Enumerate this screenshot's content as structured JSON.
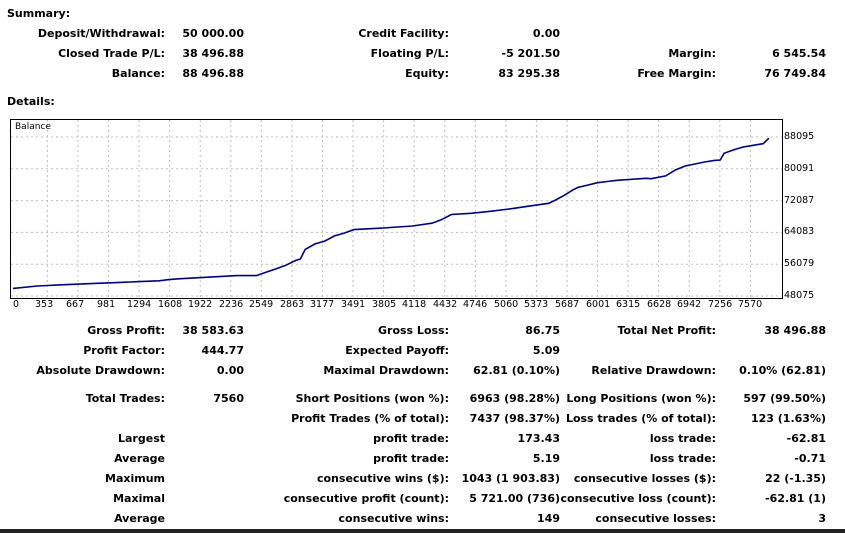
{
  "summary": {
    "title": "Summary:",
    "rows": [
      [
        {
          "label": "Deposit/Withdrawal:",
          "value": "50 000.00"
        },
        {
          "label": "Credit Facility:",
          "value": "0.00"
        },
        {
          "label": "",
          "value": ""
        }
      ],
      [
        {
          "label": "Closed Trade P/L:",
          "value": "38 496.88"
        },
        {
          "label": "Floating P/L:",
          "value": "-5 201.50"
        },
        {
          "label": "Margin:",
          "value": "6 545.54"
        }
      ],
      [
        {
          "label": "Balance:",
          "value": "88 496.88"
        },
        {
          "label": "Equity:",
          "value": "83 295.38"
        },
        {
          "label": "Free Margin:",
          "value": "76 749.84"
        }
      ]
    ]
  },
  "details": {
    "title": "Details:",
    "rows": [
      {
        "c1l": "Gross Profit:",
        "c1v": "38 583.63",
        "c2l": "Gross Loss:",
        "c2v": "86.75",
        "c3l": "Total Net Profit:",
        "c3v": "38 496.88"
      },
      {
        "c1l": "Profit Factor:",
        "c1v": "444.77",
        "c2l": "Expected Payoff:",
        "c2v": "5.09",
        "c3l": "",
        "c3v": ""
      },
      {
        "c1l": "Absolute Drawdown:",
        "c1v": "0.00",
        "c2l": "Maximal Drawdown:",
        "c2v": "62.81 (0.10%)",
        "c3l": "Relative Drawdown:",
        "c3v": "0.10% (62.81)"
      },
      {
        "c1l": "Total Trades:",
        "c1v": "7560",
        "c2l": "Short Positions (won %):",
        "c2v": "6963 (98.28%)",
        "c3l": "Long Positions (won %):",
        "c3v": "597 (99.50%)"
      },
      {
        "c1l": "",
        "c1v": "",
        "c2l": "Profit Trades (% of total):",
        "c2v": "7437 (98.37%)",
        "c3l": "Loss trades (% of total):",
        "c3v": "123 (1.63%)"
      },
      {
        "c1l": "Largest",
        "c1v": "",
        "c2l": "profit trade:",
        "c2v": "173.43",
        "c3l": "loss trade:",
        "c3v": "-62.81"
      },
      {
        "c1l": "Average",
        "c1v": "",
        "c2l": "profit trade:",
        "c2v": "5.19",
        "c3l": "loss trade:",
        "c3v": "-0.71"
      },
      {
        "c1l": "Maximum",
        "c1v": "",
        "c2l": "consecutive wins ($):",
        "c2v": "1043 (1 903.83)",
        "c3l": "consecutive losses ($):",
        "c3v": "22 (-1.35)"
      },
      {
        "c1l": "Maximal",
        "c1v": "",
        "c2l": "consecutive profit (count):",
        "c2v": "5 721.00 (736)",
        "c3l": "consecutive loss (count):",
        "c3v": "-62.81 (1)"
      },
      {
        "c1l": "Average",
        "c1v": "",
        "c2l": "consecutive wins:",
        "c2v": "149",
        "c3l": "consecutive losses:",
        "c3v": "3"
      }
    ]
  },
  "colors": {
    "line": "#00007f",
    "grid": "#bfbfbf",
    "text": "#000000"
  },
  "chart_data": {
    "type": "line",
    "title": "Balance",
    "ylim": [
      48075,
      88095
    ],
    "xlim": [
      0,
      7884
    ],
    "y_ticks": [
      "88095",
      "80091",
      "72087",
      "64083",
      "56079",
      "48075"
    ],
    "y_tick_values": [
      88095,
      80091,
      72087,
      64083,
      56079,
      48075
    ],
    "x_ticks": [
      "0",
      "353",
      "667",
      "981",
      "1294",
      "1608",
      "1922",
      "2236",
      "2549",
      "2863",
      "3177",
      "3491",
      "3805",
      "4118",
      "4432",
      "4746",
      "5060",
      "5373",
      "5687",
      "6001",
      "6315",
      "6628",
      "6942",
      "7256",
      "7570"
    ],
    "x_tick_values": [
      0,
      353,
      667,
      981,
      1294,
      1608,
      1922,
      2236,
      2549,
      2863,
      3177,
      3491,
      3805,
      4118,
      4432,
      4746,
      5060,
      5373,
      5687,
      6001,
      6315,
      6628,
      6942,
      7256,
      7570
    ],
    "grid": true,
    "series": [
      {
        "x": [
          0,
          250,
          500,
          800,
          1100,
          1300,
          1500,
          1600,
          1700,
          2000,
          2300,
          2500,
          2600,
          2700,
          2800,
          2900,
          2950,
          3000,
          3100,
          3200,
          3300,
          3400,
          3500,
          3800,
          4100,
          4300,
          4400,
          4500,
          4700,
          4900,
          5100,
          5300,
          5500,
          5560,
          5650,
          5750,
          5800,
          5900,
          6000,
          6100,
          6200,
          6500,
          6550,
          6700,
          6800,
          6900,
          7000,
          7100,
          7200,
          7260,
          7300,
          7400,
          7500,
          7600,
          7700,
          7760
        ],
        "y": [
          50000,
          50600,
          50900,
          51200,
          51500,
          51700,
          51900,
          52200,
          52400,
          52800,
          53200,
          53200,
          54100,
          54900,
          55800,
          57000,
          57400,
          59800,
          61200,
          61900,
          63200,
          63900,
          64800,
          65200,
          65700,
          66400,
          67300,
          68600,
          68900,
          69400,
          70000,
          70700,
          71400,
          72100,
          73300,
          74800,
          75400,
          76000,
          76600,
          76900,
          77200,
          77700,
          77600,
          78300,
          79800,
          80800,
          81300,
          81800,
          82200,
          82300,
          84000,
          84900,
          85600,
          86000,
          86400,
          87800
        ]
      }
    ]
  }
}
